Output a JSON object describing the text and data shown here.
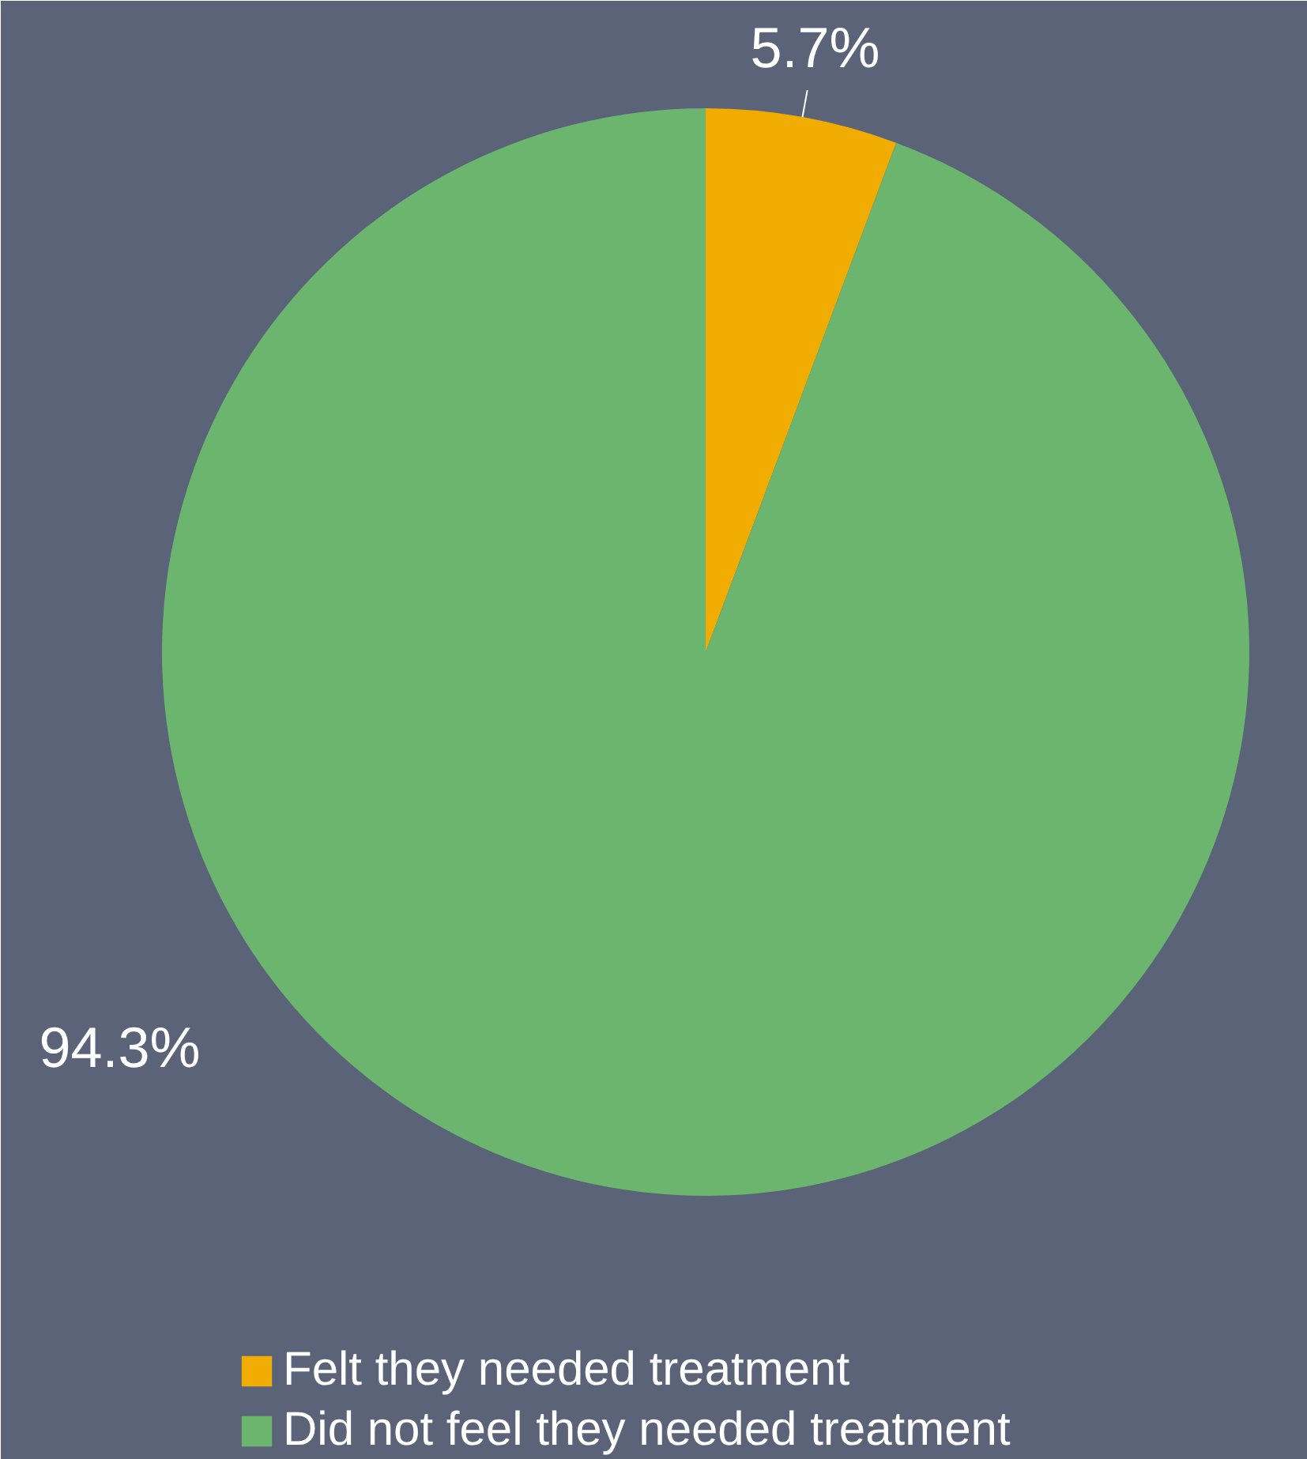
{
  "chart_data": {
    "type": "pie",
    "categories": [
      "Felt they needed treatment",
      "Did not feel they needed treatment"
    ],
    "values": [
      5.7,
      94.3
    ],
    "colors": [
      "#f0ac00",
      "#6bb56e"
    ],
    "value_labels": [
      "5.7%",
      "94.3%"
    ],
    "legend": "bottom"
  }
}
